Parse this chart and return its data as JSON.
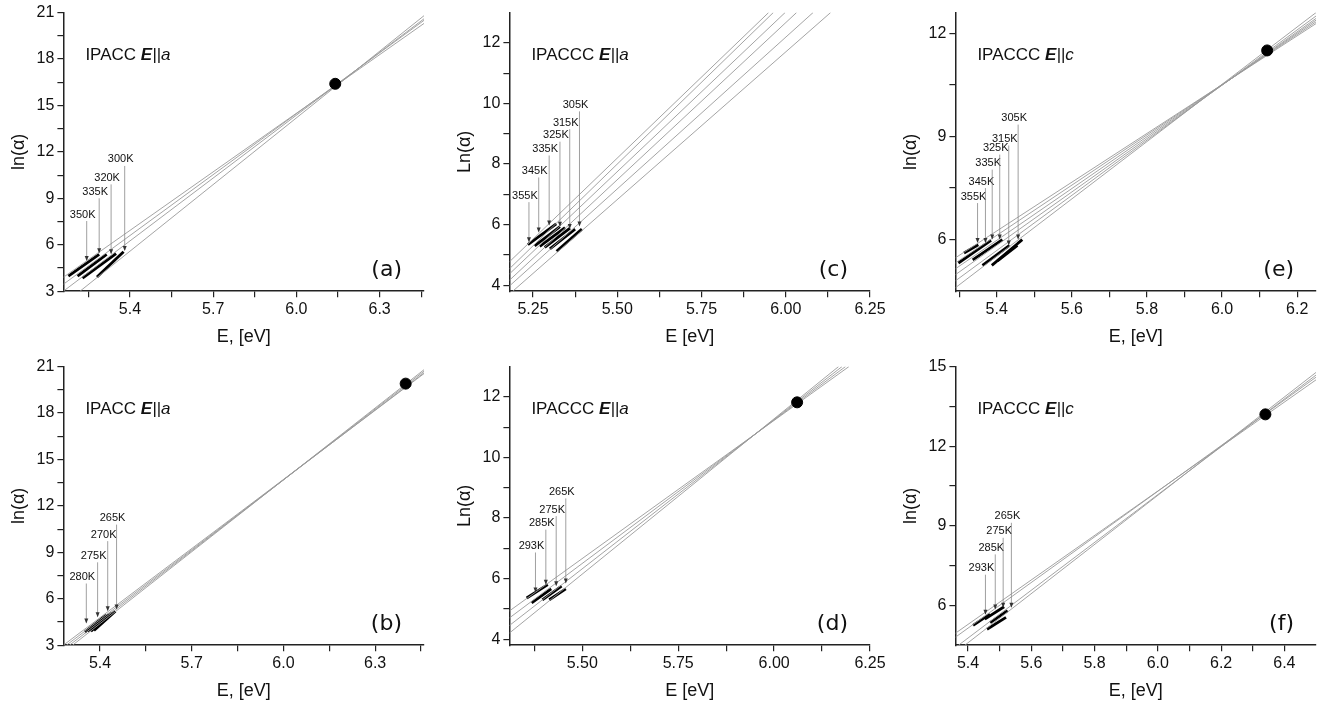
{
  "chart_data": [
    {
      "type": "line",
      "title": "IPACC E||a",
      "xlabel": "E, [eV]",
      "ylabel": "ln(α)",
      "line_style": "solid",
      "xlim": [
        5.16,
        6.46
      ],
      "xticks": [
        {
          "value": 5.25,
          "label": null
        },
        5.4,
        {
          "value": 5.55,
          "label": null
        },
        5.7,
        {
          "value": 5.85,
          "label": null
        },
        {
          "value": 6,
          "label": "6.0"
        },
        {
          "value": 6.15,
          "label": null
        },
        6.3,
        {
          "value": 6.45,
          "label": null
        }
      ],
      "ylim": [
        3,
        21
      ],
      "yticks": [
        3,
        {
          "value": 4.5,
          "label": null
        },
        6,
        {
          "value": 7.5,
          "label": null
        },
        9,
        {
          "value": 10.5,
          "label": null
        },
        12,
        {
          "value": 13.5,
          "label": null
        },
        15,
        {
          "value": 16.5,
          "label": null
        },
        18,
        {
          "value": 19.5,
          "label": null
        },
        21
      ],
      "series": [
        {
          "type": "line",
          "color": "#9a9a9a",
          "x": [
            5.16,
            6.46
          ],
          "values": [
            3.9,
            20.3
          ]
        },
        {
          "type": "line",
          "color": "#9a9a9a",
          "x": [
            5.16,
            6.46
          ],
          "values": [
            3.45,
            20.5
          ]
        },
        {
          "type": "line",
          "color": "#9a9a9a",
          "x": [
            5.16,
            6.46
          ],
          "values": [
            3.0,
            20.6
          ]
        },
        {
          "type": "line",
          "color": "#9a9a9a",
          "x": [
            5.22,
            6.46
          ],
          "values": [
            3.0,
            20.8
          ]
        },
        {
          "type": "line",
          "color": "#000000",
          "x": [
            5.178,
            5.289
          ],
          "values": [
            3.97,
            5.38
          ]
        },
        {
          "type": "line",
          "color": "#000000",
          "x": [
            5.211,
            5.316
          ],
          "values": [
            3.97,
            5.38
          ]
        },
        {
          "type": "line",
          "color": "#000000",
          "x": [
            5.229,
            5.35
          ],
          "values": [
            3.84,
            5.43
          ]
        },
        {
          "type": "line",
          "color": "#000000",
          "x": [
            5.281,
            5.377
          ],
          "values": [
            3.92,
            5.55
          ]
        },
        {
          "type": "scatter",
          "color": "#000000",
          "marker": "circle",
          "x": [
            6.14
          ],
          "values": [
            16.4
          ]
        }
      ],
      "annotations": [
        {
          "text": "350K",
          "x": 5.244,
          "y": 4.95
        },
        {
          "text": "335K",
          "x": 5.289,
          "y": 5.45
        },
        {
          "text": "320K",
          "x": 5.332,
          "y": 5.38
        },
        {
          "text": "300K",
          "x": 5.381,
          "y": 5.6
        },
        "(a)"
      ]
    },
    {
      "type": "line",
      "title": "IPACCC E||a",
      "xlabel": "E [eV]",
      "ylabel": "Ln(α)",
      "line_style": "solid",
      "xlim": [
        5.18,
        6.25
      ],
      "xticks": [
        5.25,
        {
          "value": 5.375,
          "label": null
        },
        {
          "value": 5.5,
          "label": "5.50"
        },
        {
          "value": 5.625,
          "label": null
        },
        5.75,
        {
          "value": 5.875,
          "label": null
        },
        {
          "value": 6,
          "label": "6.00"
        },
        {
          "value": 6.125,
          "label": null
        },
        6.25
      ],
      "ylim": [
        3.8,
        13
      ],
      "yticks": [
        4,
        {
          "value": 5,
          "label": null
        },
        6,
        {
          "value": 7,
          "label": null
        },
        8,
        {
          "value": 9,
          "label": null
        },
        10,
        {
          "value": 11,
          "label": null
        },
        12
      ],
      "series": [
        {
          "type": "line",
          "color": "#9a9a9a",
          "x": [
            5.18,
            5.949
          ],
          "values": [
            4.77,
            13
          ]
        },
        {
          "type": "line",
          "color": "#9a9a9a",
          "x": [
            5.18,
            5.963
          ],
          "values": [
            4.54,
            13
          ]
        },
        {
          "type": "line",
          "color": "#9a9a9a",
          "x": [
            5.18,
            5.998
          ],
          "values": [
            4.37,
            13
          ]
        },
        {
          "type": "line",
          "color": "#9a9a9a",
          "x": [
            5.18,
            6.032
          ],
          "values": [
            4.16,
            13
          ]
        },
        {
          "type": "line",
          "color": "#9a9a9a",
          "x": [
            5.18,
            6.081
          ],
          "values": [
            3.97,
            13
          ]
        },
        {
          "type": "line",
          "color": "#9a9a9a",
          "x": [
            5.19,
            6.133
          ],
          "values": [
            3.8,
            13
          ]
        },
        {
          "type": "line",
          "color": "#000000",
          "x": [
            5.235,
            5.319
          ],
          "values": [
            5.34,
            6.02
          ]
        },
        {
          "type": "line",
          "color": "#000000",
          "x": [
            5.255,
            5.33
          ],
          "values": [
            5.3,
            5.93
          ]
        },
        {
          "type": "line",
          "color": "#000000",
          "x": [
            5.27,
            5.345
          ],
          "values": [
            5.28,
            5.9
          ]
        },
        {
          "type": "line",
          "color": "#000000",
          "x": [
            5.285,
            5.36
          ],
          "values": [
            5.25,
            5.88
          ]
        },
        {
          "type": "line",
          "color": "#000000",
          "x": [
            5.3,
            5.375
          ],
          "values": [
            5.2,
            5.85
          ]
        },
        {
          "type": "line",
          "color": "#000000",
          "x": [
            5.32,
            5.395
          ],
          "values": [
            5.12,
            5.85
          ]
        }
      ],
      "annotations": [
        {
          "text": "355K",
          "x": 5.238,
          "y": 5.42
        },
        {
          "text": "345K",
          "x": 5.267,
          "y": 5.74
        },
        {
          "text": "335K",
          "x": 5.298,
          "y": 5.97
        },
        {
          "text": "325K",
          "x": 5.33,
          "y": 5.93
        },
        {
          "text": "315K",
          "x": 5.359,
          "y": 5.85
        },
        {
          "text": "305K",
          "x": 5.388,
          "y": 5.94
        },
        "(c)"
      ]
    },
    {
      "type": "line",
      "title": "IPACCC E||c",
      "xlabel": "E, [eV]",
      "ylabel": "ln(α)",
      "line_style": "solid",
      "xlim": [
        5.29,
        6.25
      ],
      "xticks": [
        {
          "value": 5.3,
          "label": null
        },
        5.4,
        {
          "value": 5.5,
          "label": null
        },
        5.6,
        {
          "value": 5.7,
          "label": null
        },
        5.8,
        {
          "value": 5.9,
          "label": null
        },
        {
          "value": 6,
          "label": "6.0"
        },
        {
          "value": 6.1,
          "label": null
        },
        6.2
      ],
      "ylim": [
        4.5,
        12.6
      ],
      "yticks": [
        6,
        {
          "value": 7.5,
          "label": null
        },
        9,
        {
          "value": 10.5,
          "label": null
        },
        12
      ],
      "series": [
        {
          "type": "line",
          "color": "#9a9a9a",
          "x": [
            5.29,
            6.25
          ],
          "values": [
            5.47,
            12.28
          ]
        },
        {
          "type": "line",
          "color": "#9a9a9a",
          "x": [
            5.29,
            6.25
          ],
          "values": [
            5.32,
            12.33
          ]
        },
        {
          "type": "line",
          "color": "#9a9a9a",
          "x": [
            5.29,
            6.25
          ],
          "values": [
            5.15,
            12.38
          ]
        },
        {
          "type": "line",
          "color": "#9a9a9a",
          "x": [
            5.29,
            6.25
          ],
          "values": [
            4.98,
            12.43
          ]
        },
        {
          "type": "line",
          "color": "#9a9a9a",
          "x": [
            5.29,
            6.25
          ],
          "values": [
            4.8,
            12.5
          ]
        },
        {
          "type": "line",
          "color": "#9a9a9a",
          "x": [
            5.29,
            6.25
          ],
          "values": [
            4.6,
            12.6
          ]
        },
        {
          "type": "line",
          "color": "#000000",
          "x": [
            5.313,
            5.351
          ],
          "values": [
            5.61,
            5.85
          ]
        },
        {
          "type": "line",
          "color": "#000000",
          "x": [
            5.298,
            5.385
          ],
          "values": [
            5.32,
            5.98
          ]
        },
        {
          "type": "line",
          "color": "#000000",
          "x": [
            5.336,
            5.415
          ],
          "values": [
            5.41,
            6.0
          ]
        },
        {
          "type": "line",
          "color": "#000000",
          "x": [
            5.362,
            5.434
          ],
          "values": [
            5.25,
            5.83
          ]
        },
        {
          "type": "line",
          "color": "#000000",
          "x": [
            5.402,
            5.455
          ],
          "values": [
            5.38,
            5.83
          ]
        },
        {
          "type": "line",
          "color": "#000000",
          "x": [
            5.387,
            5.468
          ],
          "values": [
            5.25,
            6.0
          ]
        },
        {
          "type": "scatter",
          "color": "#000000",
          "marker": "circle",
          "x": [
            6.12
          ],
          "values": [
            11.5
          ]
        }
      ],
      "annotations": [
        {
          "text": "355K",
          "x": 5.349,
          "y": 5.9
        },
        {
          "text": "345K",
          "x": 5.37,
          "y": 5.9
        },
        {
          "text": "335K",
          "x": 5.388,
          "y": 6.0
        },
        {
          "text": "325K",
          "x": 5.408,
          "y": 6.0
        },
        {
          "text": "315K",
          "x": 5.432,
          "y": 5.83
        },
        {
          "text": "305K",
          "x": 5.457,
          "y": 6.0
        },
        "(e)"
      ]
    },
    {
      "type": "line",
      "title": "IPACC E||a",
      "xlabel": "E, [eV]",
      "ylabel": "ln(α)",
      "line_style": "solid",
      "xlim": [
        5.28,
        6.46
      ],
      "xticks": [
        5.4,
        {
          "value": 5.55,
          "label": null
        },
        5.7,
        {
          "value": 5.85,
          "label": null
        },
        {
          "value": 6,
          "label": "6.0"
        },
        {
          "value": 6.15,
          "label": null
        },
        6.3,
        {
          "value": 6.45,
          "label": null
        }
      ],
      "ylim": [
        3,
        21
      ],
      "yticks": [
        3,
        {
          "value": 4.5,
          "label": null
        },
        6,
        {
          "value": 7.5,
          "label": null
        },
        9,
        {
          "value": 10.5,
          "label": null
        },
        12,
        {
          "value": 13.5,
          "label": null
        },
        15,
        {
          "value": 16.5,
          "label": null
        },
        18,
        {
          "value": 19.5,
          "label": null
        },
        21
      ],
      "series": [
        {
          "type": "line",
          "color": "#9a9a9a",
          "x": [
            5.31,
            6.46
          ],
          "values": [
            3,
            20.8
          ]
        },
        {
          "type": "line",
          "color": "#9a9a9a",
          "x": [
            5.3,
            6.46
          ],
          "values": [
            3,
            20.7
          ]
        },
        {
          "type": "line",
          "color": "#9a9a9a",
          "x": [
            5.29,
            6.46
          ],
          "values": [
            3,
            20.6
          ]
        },
        {
          "type": "line",
          "color": "#9a9a9a",
          "x": [
            5.28,
            6.46
          ],
          "values": [
            3,
            20.55
          ]
        },
        {
          "type": "line",
          "color": "#000000",
          "x": [
            5.35,
            5.42
          ],
          "values": [
            3.85,
            4.95
          ]
        },
        {
          "type": "line",
          "color": "#000000",
          "x": [
            5.36,
            5.43
          ],
          "values": [
            3.9,
            5.0
          ]
        },
        {
          "type": "line",
          "color": "#000000",
          "x": [
            5.37,
            5.44
          ],
          "values": [
            3.9,
            5.1
          ]
        },
        {
          "type": "line",
          "color": "#000000",
          "x": [
            5.38,
            5.45
          ],
          "values": [
            3.95,
            5.2
          ]
        },
        {
          "type": "scatter",
          "color": "#000000",
          "marker": "circle",
          "x": [
            6.4
          ],
          "values": [
            19.9
          ]
        }
      ],
      "annotations": [
        {
          "text": "280K",
          "x": 5.355,
          "y": 4.4
        },
        {
          "text": "275K",
          "x": 5.392,
          "y": 4.8
        },
        {
          "text": "270K",
          "x": 5.425,
          "y": 5.2
        },
        {
          "text": "265K",
          "x": 5.454,
          "y": 5.3
        },
        "(b)"
      ]
    },
    {
      "type": "line",
      "title": "IPACCC E||a",
      "xlabel": "E [eV]",
      "ylabel": "Ln(α)",
      "line_style": "solid",
      "xlim": [
        5.31,
        6.25
      ],
      "xticks": [
        {
          "value": 5.375,
          "label": null
        },
        {
          "value": 5.5,
          "label": "5.50"
        },
        {
          "value": 5.625,
          "label": null
        },
        5.75,
        {
          "value": 5.875,
          "label": null
        },
        {
          "value": 6,
          "label": "6.00"
        },
        {
          "value": 6.125,
          "label": null
        },
        6.25
      ],
      "ylim": [
        3.8,
        13
      ],
      "yticks": [
        4,
        {
          "value": 5,
          "label": null
        },
        6,
        {
          "value": 7,
          "label": null
        },
        8,
        {
          "value": 9,
          "label": null
        },
        10,
        {
          "value": 11,
          "label": null
        },
        12
      ],
      "series": [
        {
          "type": "line",
          "color": "#9a9a9a",
          "x": [
            5.31,
            6.195
          ],
          "values": [
            4.93,
            13
          ]
        },
        {
          "type": "line",
          "color": "#9a9a9a",
          "x": [
            5.31,
            6.186
          ],
          "values": [
            4.7,
            13
          ]
        },
        {
          "type": "line",
          "color": "#9a9a9a",
          "x": [
            5.31,
            6.177
          ],
          "values": [
            4.45,
            13
          ]
        },
        {
          "type": "line",
          "color": "#9a9a9a",
          "x": [
            5.31,
            6.168
          ],
          "values": [
            4.2,
            13
          ]
        },
        {
          "type": "line",
          "color": "#000000",
          "x": [
            5.355,
            5.41
          ],
          "values": [
            5.36,
            5.8
          ]
        },
        {
          "type": "line",
          "color": "#000000",
          "x": [
            5.368,
            5.419
          ],
          "values": [
            5.2,
            5.66
          ]
        },
        {
          "type": "line",
          "color": "#000000",
          "x": [
            5.396,
            5.446
          ],
          "values": [
            5.3,
            5.75
          ]
        },
        {
          "type": "line",
          "color": "#000000",
          "x": [
            5.414,
            5.457
          ],
          "values": [
            5.3,
            5.66
          ]
        },
        {
          "type": "scatter",
          "color": "#000000",
          "marker": "circle",
          "x": [
            6.06
          ],
          "values": [
            11.82
          ]
        }
      ],
      "annotations": [
        {
          "text": "293K",
          "x": 5.378,
          "y": 5.54
        },
        {
          "text": "285K",
          "x": 5.405,
          "y": 5.8
        },
        {
          "text": "275K",
          "x": 5.432,
          "y": 5.75
        },
        {
          "text": "265K",
          "x": 5.457,
          "y": 5.84
        },
        "(d)"
      ]
    },
    {
      "type": "line",
      "title": "IPACCC E||c",
      "xlabel": "E, [eV]",
      "ylabel": "ln(α)",
      "line_style": "solid",
      "xlim": [
        5.36,
        6.5
      ],
      "xticks": [
        5.4,
        {
          "value": 5.5,
          "label": null
        },
        5.6,
        {
          "value": 5.7,
          "label": null
        },
        5.8,
        {
          "value": 5.9,
          "label": null
        },
        {
          "value": 6,
          "label": "6.0"
        },
        {
          "value": 6.1,
          "label": null
        },
        6.2,
        {
          "value": 6.3,
          "label": null
        },
        6.4
      ],
      "ylim": [
        4.5,
        15
      ],
      "yticks": [
        6,
        {
          "value": 7.5,
          "label": null
        },
        9,
        {
          "value": 10.5,
          "label": null
        },
        12,
        {
          "value": 13.5,
          "label": null
        },
        15
      ],
      "series": [
        {
          "type": "line",
          "color": "#9a9a9a",
          "x": [
            5.36,
            6.5
          ],
          "values": [
            4.95,
            14.5
          ]
        },
        {
          "type": "line",
          "color": "#9a9a9a",
          "x": [
            5.36,
            6.5
          ],
          "values": [
            4.8,
            14.6
          ]
        },
        {
          "type": "line",
          "color": "#9a9a9a",
          "x": [
            5.37,
            6.5
          ],
          "values": [
            4.5,
            14.68
          ]
        },
        {
          "type": "line",
          "color": "#9a9a9a",
          "x": [
            5.39,
            6.5
          ],
          "values": [
            4.5,
            14.78
          ]
        },
        {
          "type": "line",
          "color": "#000000",
          "x": [
            5.416,
            5.469
          ],
          "values": [
            5.25,
            5.67
          ]
        },
        {
          "type": "line",
          "color": "#000000",
          "x": [
            5.453,
            5.514
          ],
          "values": [
            5.48,
            5.95
          ]
        },
        {
          "type": "line",
          "color": "#000000",
          "x": [
            5.47,
            5.525
          ],
          "values": [
            5.35,
            5.8
          ]
        },
        {
          "type": "line",
          "color": "#000000",
          "x": [
            5.46,
            5.52
          ],
          "values": [
            5.1,
            5.55
          ]
        },
        {
          "type": "scatter",
          "color": "#000000",
          "marker": "circle",
          "x": [
            6.34
          ],
          "values": [
            13.2
          ]
        }
      ],
      "annotations": [
        {
          "text": "293K",
          "x": 5.455,
          "y": 5.65
        },
        {
          "text": "285K",
          "x": 5.486,
          "y": 5.85
        },
        {
          "text": "275K",
          "x": 5.511,
          "y": 5.91
        },
        {
          "text": "265K",
          "x": 5.537,
          "y": 5.91
        },
        "(f)"
      ]
    }
  ]
}
